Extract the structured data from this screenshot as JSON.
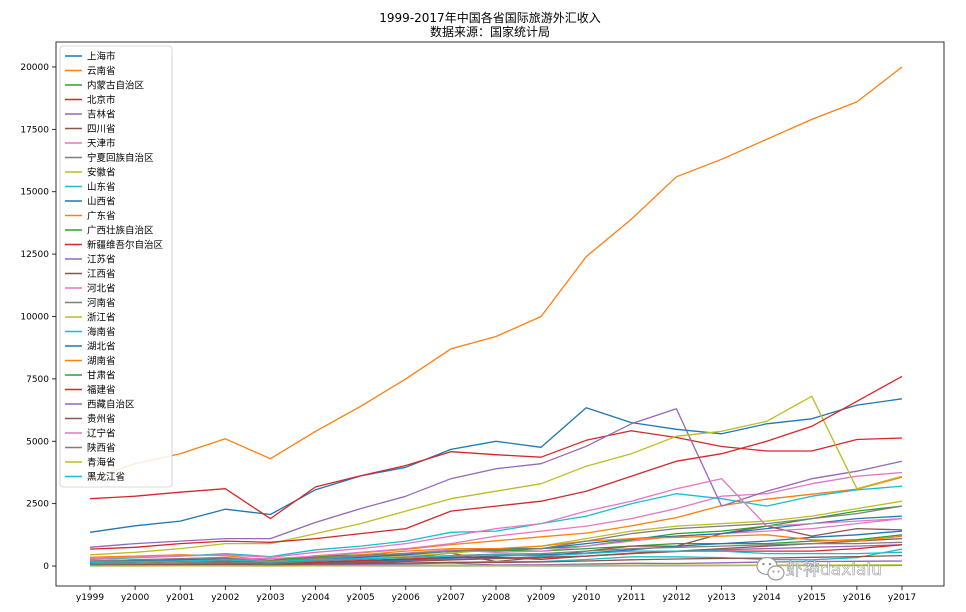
{
  "chart_data": {
    "type": "line",
    "title": "1999-2017年中国各省国际旅游外汇收入",
    "subtitle": "数据来源：国家统计局",
    "xlabel": "",
    "ylabel": "",
    "categories": [
      "y1999",
      "y2000",
      "y2001",
      "y2002",
      "y2003",
      "y2004",
      "y2005",
      "y2006",
      "y2007",
      "y2008",
      "y2009",
      "y2010",
      "y2011",
      "y2012",
      "y2013",
      "y2014",
      "y2015",
      "y2016",
      "y2017"
    ],
    "ylim": [
      -800,
      21000
    ],
    "yticks": [
      0,
      2500,
      5000,
      7500,
      10000,
      12500,
      15000,
      17500,
      20000
    ],
    "legend_position": "top-left",
    "series": [
      {
        "name": "上海市",
        "color": "#1f77b4",
        "values": [
          1350,
          1613,
          1801,
          2277,
          2064,
          3058,
          3612,
          3956,
          4673,
          5000,
          4757,
          6340,
          5750,
          5480,
          5300,
          5700,
          5900,
          6450,
          6700
        ]
      },
      {
        "name": "云南省",
        "color": "#ff7f0e",
        "values": [
          350,
          400,
          450,
          420,
          220,
          420,
          530,
          670,
          860,
          1010,
          1170,
          1320,
          1610,
          1940,
          2420,
          2680,
          2880,
          3080,
          3560
        ]
      },
      {
        "name": "内蒙古自治区",
        "color": "#2ca02c",
        "values": [
          190,
          230,
          270,
          320,
          230,
          400,
          450,
          500,
          580,
          630,
          600,
          700,
          800,
          900,
          900,
          900,
          1000,
          1050,
          1250
        ]
      },
      {
        "name": "北京市",
        "color": "#d62728",
        "values": [
          2700,
          2800,
          2960,
          3100,
          1900,
          3170,
          3620,
          4030,
          4580,
          4460,
          4360,
          5040,
          5420,
          5150,
          4790,
          4610,
          4610,
          5070,
          5130
        ]
      },
      {
        "name": "吉林省",
        "color": "#9467bd",
        "values": [
          60,
          80,
          100,
          120,
          70,
          140,
          170,
          220,
          280,
          320,
          360,
          400,
          500,
          580,
          650,
          700,
          750,
          800,
          850
        ]
      },
      {
        "name": "四川省",
        "color": "#8c564b",
        "values": [
          120,
          150,
          190,
          210,
          120,
          250,
          280,
          350,
          520,
          180,
          350,
          600,
          800,
          800,
          1300,
          1600,
          1200,
          1500,
          1450
        ]
      },
      {
        "name": "天津市",
        "color": "#e377c2",
        "values": [
          150,
          200,
          250,
          300,
          300,
          400,
          550,
          700,
          900,
          1200,
          1400,
          1600,
          1900,
          2300,
          2800,
          2900,
          3300,
          3600,
          3750
        ]
      },
      {
        "name": "宁夏回族自治区",
        "color": "#7f7f7f",
        "values": [
          2,
          3,
          4,
          5,
          2,
          5,
          6,
          7,
          8,
          9,
          6,
          7,
          12,
          14,
          18,
          20,
          22,
          25,
          28
        ]
      },
      {
        "name": "安徽省",
        "color": "#bcbd22",
        "values": [
          80,
          100,
          130,
          160,
          100,
          220,
          300,
          400,
          520,
          660,
          800,
          1100,
          1400,
          1600,
          1700,
          1800,
          2000,
          2300,
          2600
        ]
      },
      {
        "name": "山东省",
        "color": "#17becf",
        "values": [
          260,
          330,
          400,
          500,
          380,
          650,
          800,
          1000,
          1350,
          1400,
          1700,
          2000,
          2500,
          2900,
          2700,
          2400,
          2800,
          3050,
          3200
        ]
      },
      {
        "name": "山西省",
        "color": "#1f77b4",
        "values": [
          60,
          80,
          100,
          110,
          80,
          150,
          200,
          250,
          330,
          400,
          450,
          520,
          650,
          800,
          900,
          1000,
          1150,
          1250,
          1400
        ]
      },
      {
        "name": "广东省",
        "color": "#ff7f0e",
        "values": [
          3500,
          4100,
          4500,
          5100,
          4300,
          5400,
          6400,
          7500,
          8700,
          9200,
          10000,
          12400,
          13900,
          15600,
          16300,
          17100,
          17900,
          18600,
          20000
        ]
      },
      {
        "name": "广西壮族自治区",
        "color": "#2ca02c",
        "values": [
          200,
          240,
          280,
          330,
          190,
          360,
          400,
          500,
          640,
          610,
          700,
          800,
          1050,
          1300,
          1400,
          1600,
          1900,
          2200,
          2400
        ]
      },
      {
        "name": "新疆维吾尔自治区",
        "color": "#d62728",
        "values": [
          80,
          90,
          100,
          120,
          70,
          150,
          220,
          280,
          350,
          350,
          270,
          400,
          500,
          600,
          600,
          600,
          600,
          700,
          850
        ]
      },
      {
        "name": "江苏省",
        "color": "#9467bd",
        "values": [
          750,
          900,
          1000,
          1100,
          1100,
          1750,
          2300,
          2800,
          3500,
          3900,
          4100,
          4800,
          5700,
          6300,
          2400,
          3000,
          3500,
          3800,
          4200
        ]
      },
      {
        "name": "江西省",
        "color": "#8c564b",
        "values": [
          40,
          50,
          70,
          80,
          60,
          100,
          130,
          180,
          240,
          300,
          340,
          400,
          520,
          600,
          700,
          800,
          900,
          1000,
          1100
        ]
      },
      {
        "name": "河北省",
        "color": "#e377c2",
        "values": [
          200,
          250,
          290,
          350,
          180,
          300,
          400,
          520,
          650,
          550,
          600,
          800,
          1000,
          1200,
          1300,
          1400,
          1500,
          1700,
          1900
        ]
      },
      {
        "name": "河南省",
        "color": "#7f7f7f",
        "values": [
          80,
          100,
          130,
          160,
          110,
          200,
          270,
          350,
          420,
          480,
          500,
          600,
          700,
          750,
          800,
          850,
          900,
          900,
          950
        ]
      },
      {
        "name": "浙江省",
        "color": "#bcbd22",
        "values": [
          450,
          550,
          700,
          900,
          900,
          1300,
          1700,
          2200,
          2700,
          3000,
          3300,
          4000,
          4500,
          5200,
          5400,
          5800,
          6800,
          3100,
          3600
        ]
      },
      {
        "name": "海南省",
        "color": "#17becf",
        "values": [
          60,
          70,
          80,
          90,
          40,
          80,
          90,
          100,
          140,
          180,
          180,
          260,
          370,
          370,
          340,
          260,
          250,
          340,
          680
        ]
      },
      {
        "name": "湖北省",
        "color": "#1f77b4",
        "values": [
          150,
          200,
          250,
          300,
          150,
          250,
          350,
          450,
          600,
          700,
          700,
          900,
          1100,
          1200,
          1300,
          1500,
          1700,
          1900,
          2000
        ]
      },
      {
        "name": "湖南省",
        "color": "#ff7f0e",
        "values": [
          150,
          170,
          200,
          250,
          180,
          300,
          450,
          600,
          700,
          700,
          800,
          1000,
          1100,
          1150,
          1200,
          1250,
          1050,
          1000,
          1200
        ]
      },
      {
        "name": "甘肃省",
        "color": "#2ca02c",
        "values": [
          10,
          12,
          15,
          18,
          8,
          15,
          20,
          25,
          30,
          10,
          15,
          20,
          25,
          30,
          30,
          25,
          20,
          20,
          25
        ]
      },
      {
        "name": "福建省",
        "color": "#d62728",
        "values": [
          680,
          750,
          900,
          1000,
          950,
          1100,
          1300,
          1500,
          2200,
          2400,
          2600,
          3000,
          3600,
          4200,
          4500,
          5000,
          5600,
          6600,
          7600
        ]
      },
      {
        "name": "西藏自治区",
        "color": "#9467bd",
        "values": [
          40,
          50,
          55,
          60,
          30,
          60,
          70,
          80,
          120,
          40,
          50,
          80,
          110,
          100,
          130,
          160,
          180,
          190,
          200
        ]
      },
      {
        "name": "贵州省",
        "color": "#8c564b",
        "values": [
          40,
          50,
          60,
          70,
          40,
          80,
          100,
          120,
          150,
          140,
          160,
          200,
          250,
          280,
          310,
          320,
          350,
          380,
          420
        ]
      },
      {
        "name": "辽宁省",
        "color": "#e377c2",
        "values": [
          300,
          350,
          400,
          450,
          350,
          550,
          700,
          900,
          1200,
          1500,
          1700,
          2200,
          2600,
          3100,
          3500,
          1600,
          1700,
          1800,
          1900
        ]
      },
      {
        "name": "陕西省",
        "color": "#7f7f7f",
        "values": [
          200,
          250,
          300,
          330,
          150,
          320,
          420,
          500,
          600,
          650,
          700,
          1000,
          1300,
          1500,
          1600,
          1700,
          1900,
          2100,
          2400
        ]
      },
      {
        "name": "青海省",
        "color": "#bcbd22",
        "values": [
          5,
          8,
          10,
          12,
          5,
          10,
          15,
          20,
          25,
          15,
          20,
          25,
          30,
          30,
          30,
          30,
          35,
          40,
          45
        ]
      },
      {
        "name": "黑龙江省",
        "color": "#17becf",
        "values": [
          150,
          170,
          200,
          250,
          170,
          250,
          300,
          330,
          400,
          450,
          400,
          500,
          600,
          600,
          600,
          500,
          500,
          500,
          550
        ]
      }
    ]
  },
  "watermark": {
    "icon": "wechat-icon",
    "text": "虾神daxialu"
  }
}
